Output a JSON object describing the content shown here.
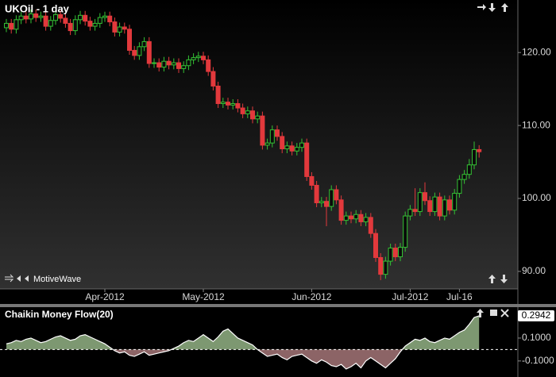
{
  "chart_data": [
    {
      "type": "candlestick",
      "title": "UKOil - 1 day",
      "annotation": "MotiveWave",
      "up_color": "#34c234",
      "down_color": "#e2393c",
      "categories": [
        null,
        null,
        null,
        null,
        null,
        null,
        null,
        null,
        null,
        null,
        null,
        null,
        null,
        null,
        null,
        null,
        null,
        null,
        null,
        null,
        "Apr-2012",
        null,
        null,
        null,
        null,
        null,
        null,
        null,
        null,
        null,
        null,
        null,
        null,
        null,
        null,
        null,
        null,
        null,
        null,
        null,
        "May-2012",
        null,
        null,
        null,
        null,
        null,
        null,
        null,
        null,
        null,
        null,
        null,
        null,
        null,
        null,
        null,
        null,
        null,
        null,
        null,
        null,
        null,
        "Jun-2012",
        null,
        null,
        null,
        null,
        null,
        null,
        null,
        null,
        null,
        null,
        null,
        null,
        null,
        null,
        null,
        null,
        null,
        null,
        null,
        "Jul-2012",
        null,
        null,
        null,
        null,
        null,
        null,
        null,
        null,
        null,
        "Jul-16",
        null,
        null,
        null,
        null
      ],
      "ohlc": [
        [
          123.4,
          124.6,
          122.8,
          124.0
        ],
        [
          124.0,
          124.6,
          122.6,
          123.2
        ],
        [
          123.2,
          125.1,
          122.6,
          124.5
        ],
        [
          124.5,
          125.6,
          123.9,
          125.0
        ],
        [
          125.0,
          125.6,
          124.0,
          124.6
        ],
        [
          124.6,
          125.9,
          124.0,
          125.3
        ],
        [
          125.3,
          125.9,
          124.2,
          124.8
        ],
        [
          124.8,
          125.6,
          124.2,
          125.0
        ],
        [
          125.0,
          125.6,
          123.0,
          123.6
        ],
        [
          123.6,
          125.0,
          123.0,
          124.4
        ],
        [
          124.4,
          125.8,
          123.8,
          125.2
        ],
        [
          125.2,
          125.8,
          124.1,
          124.7
        ],
        [
          124.7,
          125.3,
          123.4,
          124.0
        ],
        [
          124.0,
          124.6,
          122.4,
          123.0
        ],
        [
          123.0,
          125.1,
          122.4,
          124.5
        ],
        [
          124.5,
          125.7,
          123.9,
          125.1
        ],
        [
          125.1,
          125.7,
          123.7,
          124.3
        ],
        [
          124.3,
          124.9,
          123.0,
          123.6
        ],
        [
          123.6,
          124.6,
          123.0,
          124.0
        ],
        [
          124.0,
          125.4,
          123.4,
          124.8
        ],
        [
          124.8,
          125.6,
          124.2,
          125.0
        ],
        [
          125.0,
          125.6,
          123.6,
          124.2
        ],
        [
          124.2,
          124.8,
          122.2,
          122.8
        ],
        [
          122.8,
          124.1,
          122.2,
          123.5
        ],
        [
          123.5,
          124.1,
          122.6,
          123.2
        ],
        [
          123.2,
          123.8,
          119.7,
          120.3
        ],
        [
          120.3,
          120.9,
          119.0,
          119.6
        ],
        [
          119.6,
          121.4,
          119.0,
          120.8
        ],
        [
          120.8,
          122.1,
          120.2,
          121.5
        ],
        [
          121.5,
          122.1,
          117.9,
          118.5
        ],
        [
          118.5,
          119.2,
          117.9,
          118.6
        ],
        [
          118.6,
          119.2,
          117.4,
          118.0
        ],
        [
          118.0,
          119.4,
          117.4,
          118.8
        ],
        [
          118.8,
          119.4,
          117.7,
          118.3
        ],
        [
          118.3,
          119.2,
          117.7,
          118.6
        ],
        [
          118.6,
          119.2,
          117.2,
          117.8
        ],
        [
          117.8,
          118.8,
          117.2,
          118.2
        ],
        [
          118.2,
          119.6,
          117.6,
          119.0
        ],
        [
          119.0,
          119.9,
          118.4,
          119.3
        ],
        [
          119.3,
          120.1,
          118.7,
          119.5
        ],
        [
          119.5,
          120.1,
          118.4,
          119.0
        ],
        [
          119.0,
          119.6,
          116.8,
          117.4
        ],
        [
          117.4,
          118.0,
          114.8,
          115.4
        ],
        [
          115.4,
          116.0,
          112.4,
          113.0
        ],
        [
          113.0,
          113.8,
          112.4,
          113.2
        ],
        [
          113.2,
          113.8,
          112.2,
          112.8
        ],
        [
          112.8,
          113.6,
          112.2,
          113.0
        ],
        [
          113.0,
          113.6,
          111.8,
          112.4
        ],
        [
          112.4,
          113.0,
          111.0,
          111.6
        ],
        [
          111.6,
          112.6,
          111.0,
          112.0
        ],
        [
          112.0,
          112.6,
          110.3,
          110.9
        ],
        [
          110.9,
          111.9,
          110.3,
          111.3
        ],
        [
          111.3,
          111.9,
          106.7,
          107.3
        ],
        [
          107.3,
          108.2,
          106.7,
          107.6
        ],
        [
          107.6,
          110.0,
          107.0,
          109.4
        ],
        [
          109.4,
          110.0,
          107.9,
          108.5
        ],
        [
          108.5,
          109.1,
          106.2,
          106.8
        ],
        [
          106.8,
          107.8,
          106.2,
          107.2
        ],
        [
          107.2,
          107.8,
          105.9,
          106.5
        ],
        [
          106.5,
          107.6,
          105.9,
          107.0
        ],
        [
          107.0,
          108.2,
          106.4,
          107.6
        ],
        [
          107.6,
          108.2,
          102.4,
          103.0
        ],
        [
          103.0,
          103.6,
          101.2,
          101.8
        ],
        [
          101.8,
          102.4,
          98.8,
          99.4
        ],
        [
          99.4,
          100.2,
          98.8,
          99.6
        ],
        [
          99.6,
          100.2,
          96.2,
          98.9
        ],
        [
          98.9,
          101.8,
          98.3,
          101.2
        ],
        [
          101.2,
          101.8,
          99.2,
          99.8
        ],
        [
          99.8,
          100.4,
          96.4,
          97.0
        ],
        [
          97.0,
          98.2,
          96.4,
          97.6
        ],
        [
          97.6,
          98.2,
          96.6,
          97.2
        ],
        [
          97.2,
          98.4,
          96.6,
          97.8
        ],
        [
          97.8,
          98.4,
          96.2,
          96.8
        ],
        [
          96.8,
          98.0,
          96.2,
          97.4
        ],
        [
          97.4,
          98.0,
          94.6,
          95.2
        ],
        [
          95.2,
          95.8,
          91.3,
          91.9
        ],
        [
          91.9,
          92.5,
          88.8,
          89.6
        ],
        [
          89.6,
          92.0,
          89.0,
          91.4
        ],
        [
          91.4,
          93.8,
          90.8,
          93.2
        ],
        [
          93.2,
          93.8,
          91.4,
          92.0
        ],
        [
          92.0,
          93.9,
          91.4,
          93.3
        ],
        [
          93.3,
          98.2,
          92.7,
          97.6
        ],
        [
          97.6,
          99.1,
          97.0,
          98.5
        ],
        [
          98.5,
          101.4,
          97.6,
          98.2
        ],
        [
          98.2,
          101.4,
          97.6,
          100.8
        ],
        [
          100.8,
          102.2,
          99.1,
          99.7
        ],
        [
          99.7,
          100.3,
          97.6,
          98.2
        ],
        [
          98.2,
          100.8,
          97.6,
          100.2
        ],
        [
          100.2,
          100.8,
          97.0,
          97.6
        ],
        [
          97.6,
          100.4,
          97.0,
          99.8
        ],
        [
          99.8,
          100.4,
          97.8,
          98.4
        ],
        [
          98.4,
          101.3,
          97.8,
          100.7
        ],
        [
          100.7,
          103.2,
          100.1,
          102.6
        ],
        [
          102.6,
          103.9,
          102.0,
          103.3
        ],
        [
          103.3,
          105.4,
          102.7,
          104.6
        ],
        [
          104.6,
          107.8,
          104.0,
          106.7
        ],
        [
          106.7,
          107.3,
          105.6,
          106.4
        ]
      ],
      "ylim": [
        87.6,
        127.2
      ],
      "yticks": [
        {
          "value": 90,
          "label": "90.00"
        },
        {
          "value": 100,
          "label": "100.00"
        },
        {
          "value": 110,
          "label": "110.00"
        },
        {
          "value": 120,
          "label": "120.00"
        }
      ]
    },
    {
      "type": "area",
      "title": "Chaikin Money Flow(20)",
      "positive_color": "#7d9871",
      "negative_color": "#8c6466",
      "line_color": "#ffffff",
      "values": [
        0.05,
        0.06,
        0.08,
        0.07,
        0.09,
        0.1,
        0.08,
        0.06,
        0.07,
        0.09,
        0.11,
        0.12,
        0.1,
        0.08,
        0.09,
        0.12,
        0.13,
        0.11,
        0.09,
        0.07,
        0.05,
        0.02,
        -0.01,
        -0.03,
        -0.02,
        -0.05,
        -0.06,
        -0.04,
        -0.02,
        -0.05,
        -0.04,
        -0.03,
        -0.02,
        -0.01,
        0.01,
        0.03,
        0.06,
        0.08,
        0.07,
        0.1,
        0.13,
        0.1,
        0.07,
        0.11,
        0.16,
        0.18,
        0.14,
        0.1,
        0.08,
        0.06,
        0.04,
        0.0,
        -0.03,
        -0.06,
        -0.05,
        -0.04,
        -0.07,
        -0.09,
        -0.06,
        -0.05,
        -0.04,
        -0.07,
        -0.1,
        -0.12,
        -0.09,
        -0.11,
        -0.14,
        -0.15,
        -0.13,
        -0.17,
        -0.15,
        -0.12,
        -0.16,
        -0.1,
        -0.07,
        -0.1,
        -0.13,
        -0.16,
        -0.12,
        -0.08,
        -0.02,
        0.03,
        0.06,
        0.09,
        0.08,
        0.1,
        0.07,
        0.06,
        0.08,
        0.1,
        0.09,
        0.12,
        0.15,
        0.17,
        0.22,
        0.28,
        0.2942
      ],
      "ylim": [
        -0.24,
        0.37
      ],
      "yticks": [
        {
          "value": 0.1,
          "label": "0.1000"
        },
        {
          "value": -0.1,
          "label": "-0.1000"
        }
      ]
    }
  ]
}
